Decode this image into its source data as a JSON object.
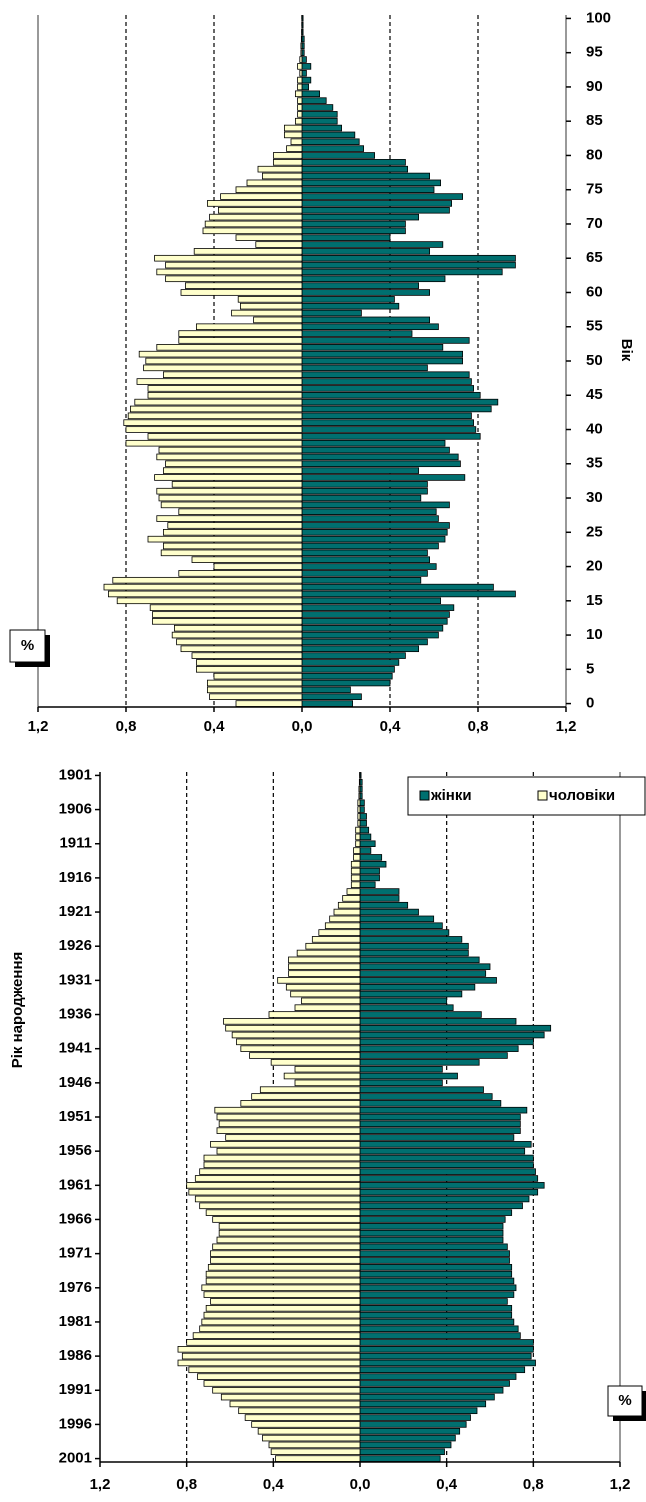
{
  "chart_data": [
    {
      "type": "bar",
      "orientation": "horizontal",
      "ylabel": "Вік",
      "xlabel": "%",
      "xlim": [
        -1.2,
        1.2
      ],
      "xticks": [
        {
          "value": -1.2,
          "label": "1,2"
        },
        {
          "value": -0.8,
          "label": "0,8"
        },
        {
          "value": -0.4,
          "label": "0,4"
        },
        {
          "value": 0,
          "label": "0,0"
        },
        {
          "value": 0.4,
          "label": "0,4"
        },
        {
          "value": 0.8,
          "label": "0,8"
        },
        {
          "value": 1.2,
          "label": "1,2"
        }
      ],
      "ylim": [
        -0.5,
        100.5
      ],
      "yticks": [
        0,
        5,
        10,
        15,
        20,
        25,
        30,
        35,
        40,
        45,
        50,
        55,
        60,
        65,
        70,
        75,
        80,
        85,
        90,
        95,
        100
      ],
      "grid": true,
      "y": [
        0,
        1,
        2,
        3,
        4,
        5,
        6,
        7,
        8,
        9,
        10,
        11,
        12,
        13,
        14,
        15,
        16,
        17,
        18,
        19,
        20,
        21,
        22,
        23,
        24,
        25,
        26,
        27,
        28,
        29,
        30,
        31,
        32,
        33,
        34,
        35,
        36,
        37,
        38,
        39,
        40,
        41,
        42,
        43,
        44,
        45,
        46,
        47,
        48,
        49,
        50,
        51,
        52,
        53,
        54,
        55,
        56,
        57,
        58,
        59,
        60,
        61,
        62,
        63,
        64,
        65,
        66,
        67,
        68,
        69,
        70,
        71,
        72,
        73,
        74,
        75,
        76,
        77,
        78,
        79,
        80,
        81,
        82,
        83,
        84,
        85,
        86,
        87,
        88,
        89,
        90,
        91,
        92,
        93,
        94,
        95,
        96,
        97,
        98,
        99,
        100
      ],
      "series": [
        {
          "color": "#006f6f",
          "values": [
            0.23,
            0.27,
            0.22,
            0.4,
            0.41,
            0.42,
            0.44,
            0.47,
            0.53,
            0.57,
            0.62,
            0.64,
            0.66,
            0.67,
            0.69,
            0.63,
            0.97,
            0.87,
            0.54,
            0.57,
            0.61,
            0.58,
            0.57,
            0.62,
            0.65,
            0.66,
            0.67,
            0.62,
            0.61,
            0.67,
            0.54,
            0.57,
            0.57,
            0.74,
            0.53,
            0.72,
            0.71,
            0.67,
            0.65,
            0.81,
            0.79,
            0.78,
            0.77,
            0.86,
            0.89,
            0.81,
            0.78,
            0.77,
            0.76,
            0.57,
            0.73,
            0.73,
            0.64,
            0.76,
            0.5,
            0.62,
            0.58,
            0.27,
            0.44,
            0.42,
            0.58,
            0.53,
            0.65,
            0.91,
            0.97,
            0.97,
            0.58,
            0.64,
            0.4,
            0.47,
            0.47,
            0.53,
            0.67,
            0.68,
            0.73,
            0.6,
            0.63,
            0.58,
            0.48,
            0.47,
            0.33,
            0.28,
            0.26,
            0.24,
            0.18,
            0.16,
            0.16,
            0.14,
            0.11,
            0.08,
            0.03,
            0.04,
            0.02,
            0.04,
            0.02,
            0.01,
            0.01,
            0.01,
            0.005,
            0.005,
            0.005
          ]
        },
        {
          "color": "#ffffcc",
          "values": [
            -0.3,
            -0.42,
            -0.43,
            -0.43,
            -0.4,
            -0.48,
            -0.48,
            -0.5,
            -0.55,
            -0.57,
            -0.59,
            -0.58,
            -0.68,
            -0.68,
            -0.69,
            -0.84,
            -0.88,
            -0.9,
            -0.86,
            -0.56,
            -0.4,
            -0.5,
            -0.64,
            -0.63,
            -0.7,
            -0.63,
            -0.61,
            -0.66,
            -0.56,
            -0.64,
            -0.65,
            -0.66,
            -0.59,
            -0.67,
            -0.63,
            -0.62,
            -0.66,
            -0.65,
            -0.8,
            -0.7,
            -0.8,
            -0.81,
            -0.79,
            -0.78,
            -0.76,
            -0.7,
            -0.7,
            -0.75,
            -0.63,
            -0.72,
            -0.71,
            -0.74,
            -0.66,
            -0.56,
            -0.56,
            -0.48,
            -0.22,
            -0.32,
            -0.28,
            -0.29,
            -0.55,
            -0.53,
            -0.62,
            -0.66,
            -0.62,
            -0.67,
            -0.49,
            -0.21,
            -0.3,
            -0.45,
            -0.44,
            -0.42,
            -0.38,
            -0.43,
            -0.37,
            -0.3,
            -0.25,
            -0.18,
            -0.2,
            -0.13,
            -0.13,
            -0.07,
            -0.05,
            -0.08,
            -0.08,
            -0.03,
            -0.02,
            -0.02,
            -0.02,
            -0.03,
            -0.02,
            -0.02,
            -0.01,
            -0.02,
            -0.01,
            -0.005,
            -0.005,
            -0.003,
            -0.002,
            -0.001,
            -0.001
          ]
        }
      ]
    },
    {
      "type": "bar",
      "orientation": "horizontal",
      "ylabel": "Рік народження",
      "xlabel": "%",
      "xlim": [
        -1.2,
        1.2
      ],
      "xticks": [
        {
          "value": -1.2,
          "label": "1,2"
        },
        {
          "value": -0.8,
          "label": "0,8"
        },
        {
          "value": -0.4,
          "label": "0,4"
        },
        {
          "value": 0,
          "label": "0,0"
        },
        {
          "value": 0.4,
          "label": "0,4"
        },
        {
          "value": 0.8,
          "label": "0,8"
        },
        {
          "value": 1.2,
          "label": "1,2"
        }
      ],
      "ylim": [
        2001.5,
        1900.5
      ],
      "yticks": [
        1901,
        1906,
        1911,
        1916,
        1921,
        1926,
        1931,
        1936,
        1941,
        1946,
        1951,
        1956,
        1961,
        1966,
        1971,
        1976,
        1981,
        1986,
        1991,
        1996,
        2001
      ],
      "grid": true,
      "legend": "top-right",
      "y": [
        1901,
        1902,
        1903,
        1904,
        1905,
        1906,
        1907,
        1908,
        1909,
        1910,
        1911,
        1912,
        1913,
        1914,
        1915,
        1916,
        1917,
        1918,
        1919,
        1920,
        1921,
        1922,
        1923,
        1924,
        1925,
        1926,
        1927,
        1928,
        1929,
        1930,
        1931,
        1932,
        1933,
        1934,
        1935,
        1936,
        1937,
        1938,
        1939,
        1940,
        1941,
        1942,
        1943,
        1944,
        1945,
        1946,
        1947,
        1948,
        1949,
        1950,
        1951,
        1952,
        1953,
        1954,
        1955,
        1956,
        1957,
        1958,
        1959,
        1960,
        1961,
        1962,
        1963,
        1964,
        1965,
        1966,
        1967,
        1968,
        1969,
        1970,
        1971,
        1972,
        1973,
        1974,
        1975,
        1976,
        1977,
        1978,
        1979,
        1980,
        1981,
        1982,
        1983,
        1984,
        1985,
        1986,
        1987,
        1988,
        1989,
        1990,
        1991,
        1992,
        1993,
        1994,
        1995,
        1996,
        1997,
        1998,
        1999,
        2000,
        2001
      ],
      "series": [
        {
          "name": "жінки",
          "color": "#006f6f",
          "values": [
            0.005,
            0.01,
            0.01,
            0.01,
            0.02,
            0.02,
            0.03,
            0.03,
            0.04,
            0.05,
            0.07,
            0.05,
            0.1,
            0.12,
            0.09,
            0.09,
            0.07,
            0.18,
            0.18,
            0.22,
            0.27,
            0.34,
            0.38,
            0.41,
            0.47,
            0.5,
            0.5,
            0.55,
            0.6,
            0.58,
            0.63,
            0.53,
            0.47,
            0.4,
            0.43,
            0.56,
            0.72,
            0.88,
            0.85,
            0.8,
            0.73,
            0.68,
            0.55,
            0.38,
            0.45,
            0.38,
            0.57,
            0.61,
            0.65,
            0.77,
            0.74,
            0.74,
            0.74,
            0.71,
            0.79,
            0.76,
            0.8,
            0.8,
            0.81,
            0.82,
            0.85,
            0.82,
            0.78,
            0.75,
            0.7,
            0.67,
            0.66,
            0.66,
            0.66,
            0.68,
            0.69,
            0.69,
            0.7,
            0.7,
            0.71,
            0.72,
            0.71,
            0.68,
            0.7,
            0.7,
            0.71,
            0.73,
            0.74,
            0.8,
            0.8,
            0.79,
            0.81,
            0.76,
            0.72,
            0.69,
            0.66,
            0.62,
            0.58,
            0.54,
            0.51,
            0.49,
            0.46,
            0.44,
            0.42,
            0.39,
            0.37
          ]
        },
        {
          "name": "чоловіки",
          "color": "#ffffcc",
          "values": [
            -0.002,
            -0.003,
            -0.005,
            -0.005,
            -0.01,
            -0.01,
            -0.01,
            -0.01,
            -0.02,
            -0.02,
            -0.02,
            -0.03,
            -0.03,
            -0.04,
            -0.04,
            -0.04,
            -0.04,
            -0.06,
            -0.08,
            -0.1,
            -0.12,
            -0.14,
            -0.16,
            -0.19,
            -0.22,
            -0.25,
            -0.29,
            -0.33,
            -0.33,
            -0.33,
            -0.38,
            -0.34,
            -0.32,
            -0.27,
            -0.3,
            -0.42,
            -0.63,
            -0.62,
            -0.59,
            -0.57,
            -0.55,
            -0.51,
            -0.41,
            -0.3,
            -0.35,
            -0.3,
            -0.46,
            -0.5,
            -0.55,
            -0.67,
            -0.66,
            -0.65,
            -0.66,
            -0.62,
            -0.69,
            -0.66,
            -0.72,
            -0.72,
            -0.74,
            -0.76,
            -0.8,
            -0.79,
            -0.76,
            -0.74,
            -0.71,
            -0.68,
            -0.65,
            -0.65,
            -0.66,
            -0.68,
            -0.69,
            -0.69,
            -0.7,
            -0.71,
            -0.71,
            -0.73,
            -0.72,
            -0.69,
            -0.71,
            -0.72,
            -0.73,
            -0.74,
            -0.77,
            -0.8,
            -0.84,
            -0.82,
            -0.84,
            -0.79,
            -0.75,
            -0.72,
            -0.68,
            -0.64,
            -0.6,
            -0.56,
            -0.53,
            -0.5,
            -0.47,
            -0.45,
            -0.42,
            -0.41,
            -0.39
          ]
        }
      ]
    }
  ]
}
